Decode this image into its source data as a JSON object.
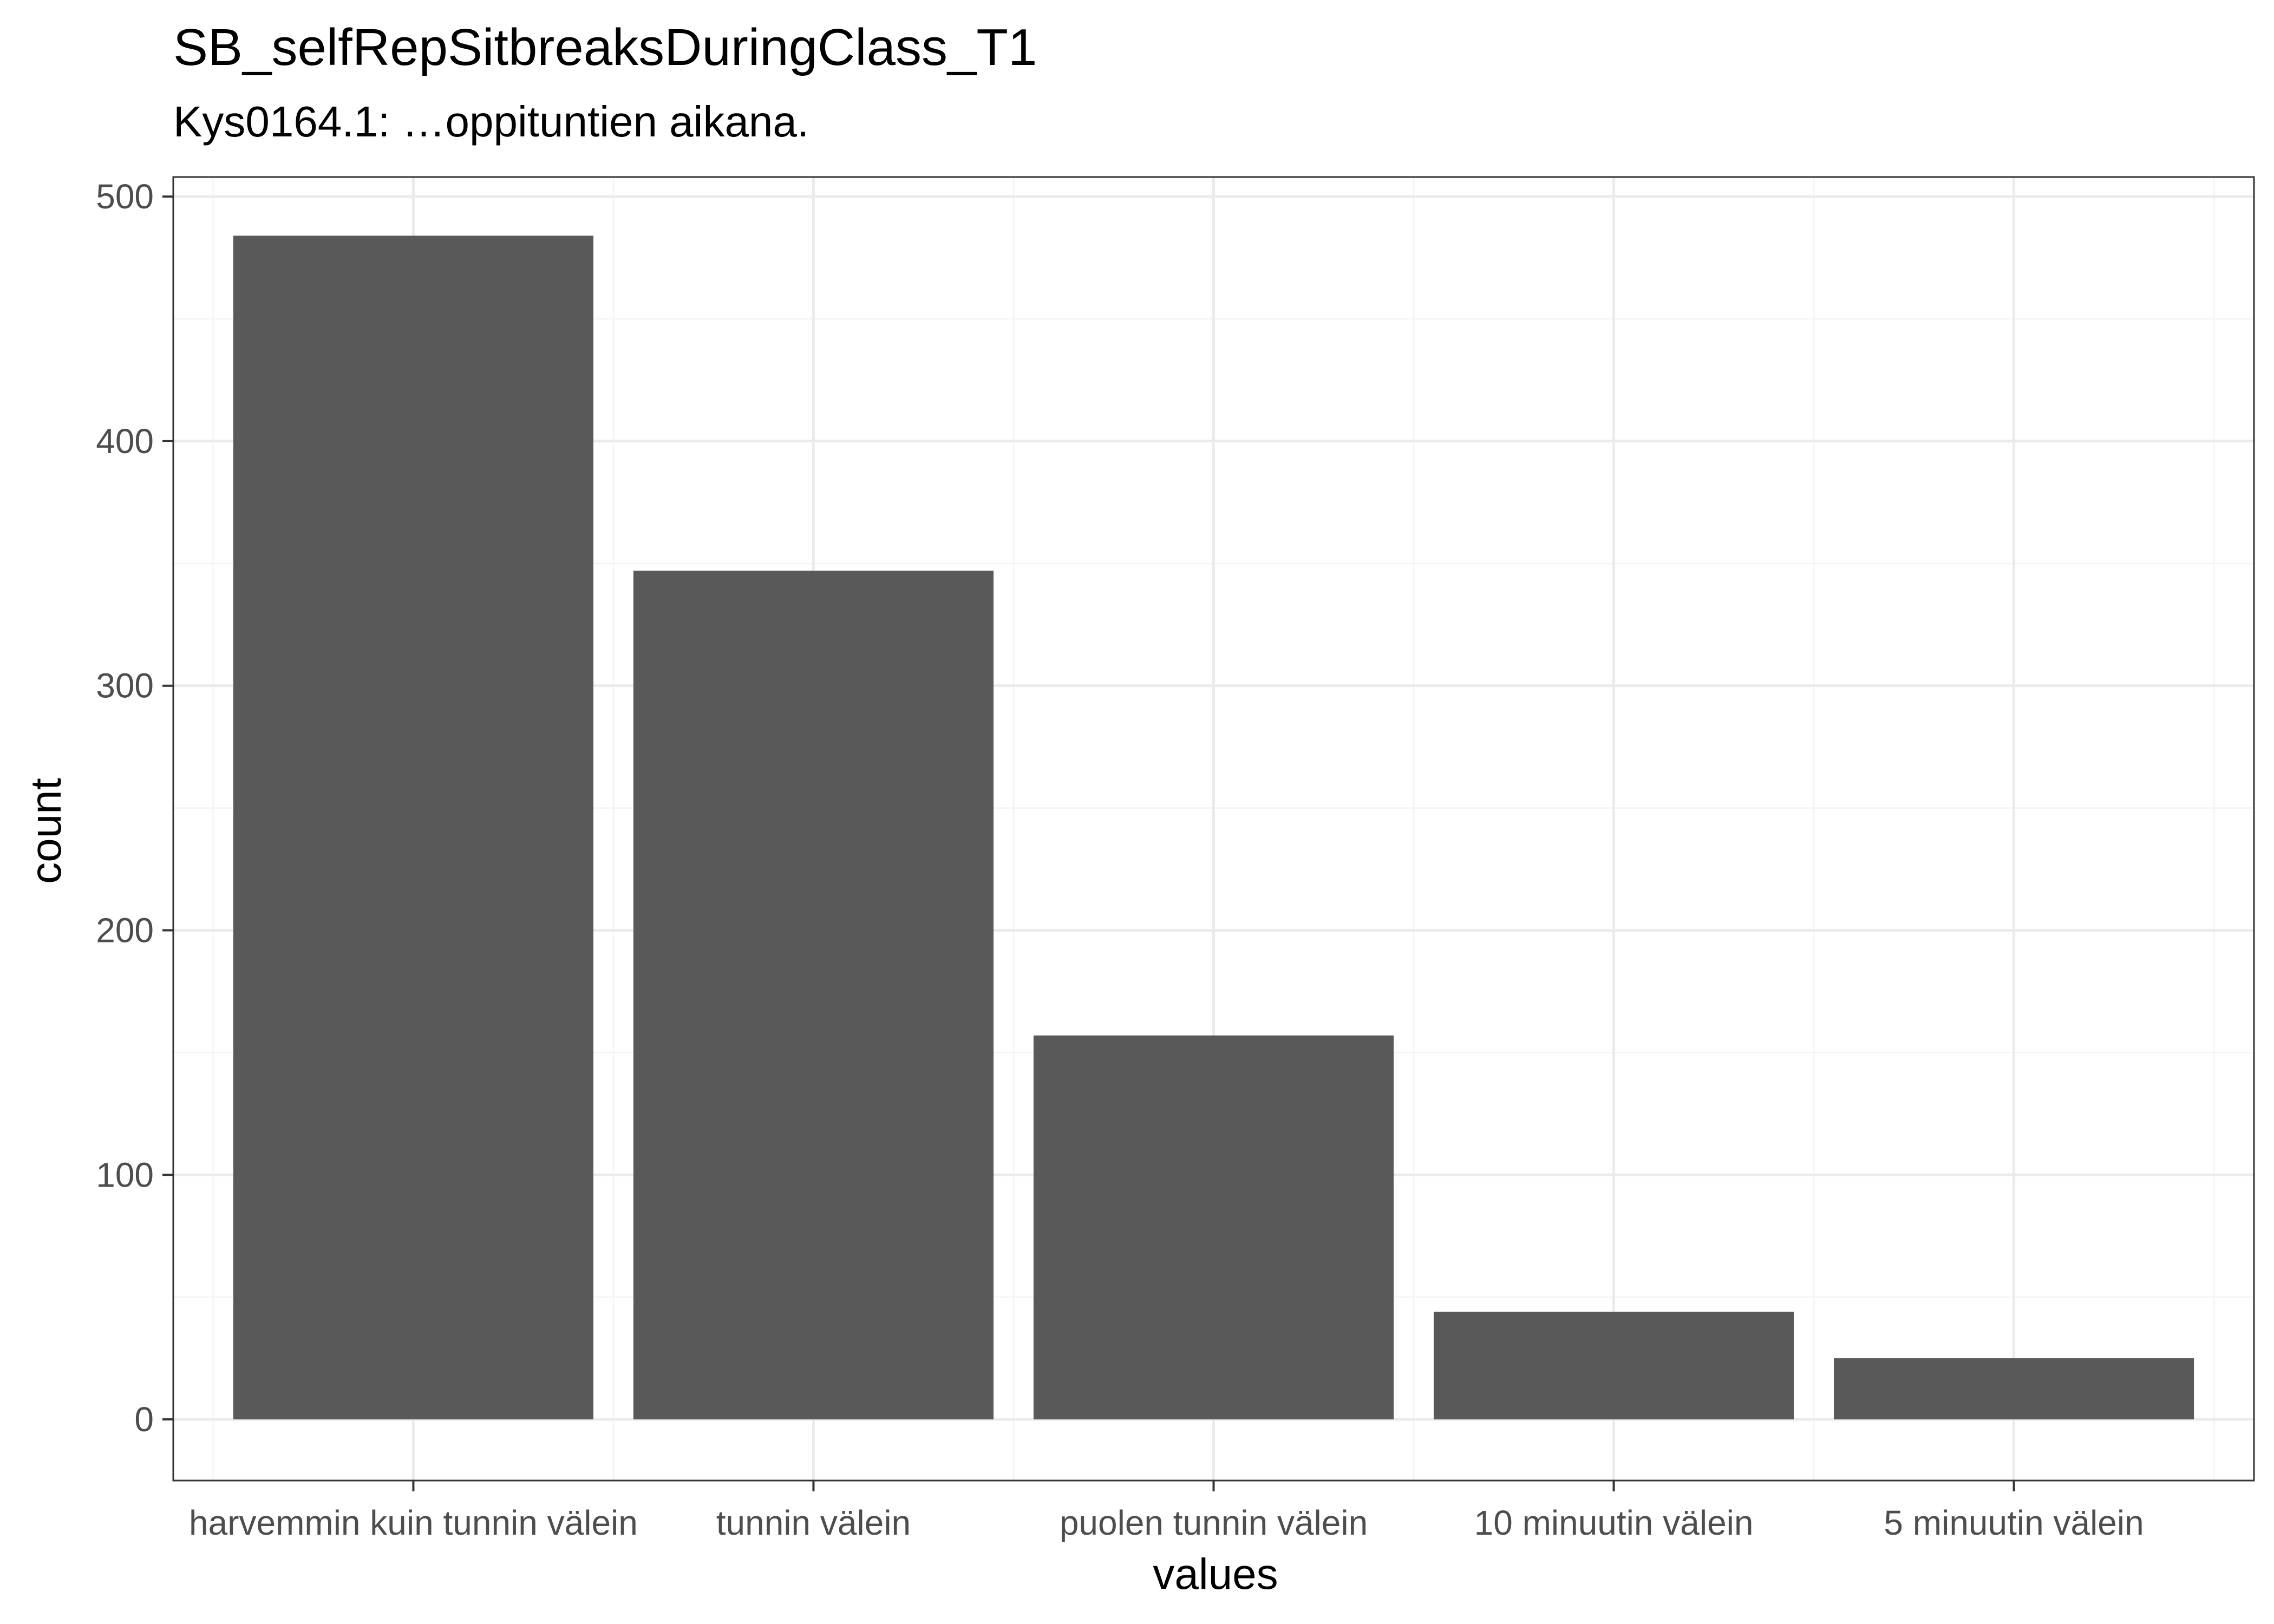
{
  "chart_data": {
    "type": "bar",
    "title": "SB_selfRepSitbreaksDuringClass_T1",
    "subtitle": "Kys0164.1: …oppituntien aikana.",
    "xlabel": "values",
    "ylabel": "count",
    "categories": [
      "harvemmin kuin tunnin välein",
      "tunnin välein",
      "puolen tunnin välein",
      "10 minuutin välein",
      "5 minuutin välein"
    ],
    "values": [
      484,
      347,
      157,
      44,
      25
    ],
    "ylim": [
      -25,
      508
    ],
    "yticks": [
      0,
      100,
      200,
      300,
      400,
      500
    ],
    "grid": true,
    "colors": {
      "bar": "#595959",
      "grid_major": "#ebebeb",
      "grid_minor": "#f5f5f5",
      "panel_border": "#333333"
    }
  }
}
